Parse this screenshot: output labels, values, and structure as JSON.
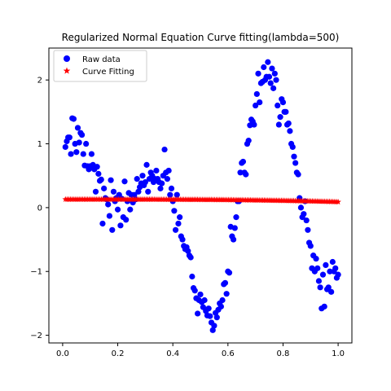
{
  "chart_data": {
    "type": "scatter",
    "title": "Regularized Normal Equation Curve fitting(lambda=500)",
    "xlabel": "",
    "ylabel": "",
    "xlim": [
      -0.05,
      1.05
    ],
    "ylim": [
      -2.12,
      2.5
    ],
    "xticks": [
      0.0,
      0.2,
      0.4,
      0.6,
      0.8,
      1.0
    ],
    "xtick_labels": [
      "0.0",
      "0.2",
      "0.4",
      "0.6",
      "0.8",
      "1.0"
    ],
    "yticks": [
      -2,
      -1,
      0,
      1,
      2
    ],
    "ytick_labels": [
      "−2",
      "−1",
      "0",
      "1",
      "2"
    ],
    "legend": {
      "position": "top-left"
    },
    "series": [
      {
        "name": "Raw data",
        "marker": "circle",
        "color": "#0000ff",
        "points": [
          [
            0.01,
            0.95
          ],
          [
            0.015,
            1.04
          ],
          [
            0.02,
            1.1
          ],
          [
            0.025,
            1.1
          ],
          [
            0.03,
            0.84
          ],
          [
            0.035,
            1.4
          ],
          [
            0.04,
            1.39
          ],
          [
            0.045,
            1.0
          ],
          [
            0.05,
            0.87
          ],
          [
            0.055,
            1.25
          ],
          [
            0.06,
            1.02
          ],
          [
            0.065,
            1.17
          ],
          [
            0.07,
            1.14
          ],
          [
            0.075,
            0.84
          ],
          [
            0.08,
            0.66
          ],
          [
            0.085,
            1.0
          ],
          [
            0.09,
            0.65
          ],
          [
            0.095,
            0.6
          ],
          [
            0.1,
            0.65
          ],
          [
            0.105,
            0.84
          ],
          [
            0.11,
            0.67
          ],
          [
            0.115,
            0.6
          ],
          [
            0.12,
            0.25
          ],
          [
            0.125,
            0.64
          ],
          [
            0.13,
            0.53
          ],
          [
            0.135,
            0.42
          ],
          [
            0.14,
            0.44
          ],
          [
            0.145,
            -0.25
          ],
          [
            0.15,
            0.3
          ],
          [
            0.155,
            0.15
          ],
          [
            0.16,
            0.13
          ],
          [
            0.165,
            0.05
          ],
          [
            0.17,
            -0.13
          ],
          [
            0.175,
            0.43
          ],
          [
            0.18,
            -0.35
          ],
          [
            0.185,
            0.25
          ],
          [
            0.19,
            0.1
          ],
          [
            0.195,
            0.15
          ],
          [
            0.2,
            -0.03
          ],
          [
            0.205,
            0.2
          ],
          [
            0.21,
            -0.28
          ],
          [
            0.215,
            0.14
          ],
          [
            0.22,
            -0.15
          ],
          [
            0.225,
            0.41
          ],
          [
            0.23,
            -0.19
          ],
          [
            0.235,
            0.1
          ],
          [
            0.24,
            0.23
          ],
          [
            0.245,
            -0.03
          ],
          [
            0.25,
            0.2
          ],
          [
            0.255,
            0.08
          ],
          [
            0.26,
            0.2
          ],
          [
            0.265,
            0.13
          ],
          [
            0.27,
            0.45
          ],
          [
            0.275,
            0.25
          ],
          [
            0.28,
            0.32
          ],
          [
            0.285,
            0.38
          ],
          [
            0.29,
            0.5
          ],
          [
            0.295,
            0.35
          ],
          [
            0.3,
            0.4
          ],
          [
            0.305,
            0.67
          ],
          [
            0.31,
            0.25
          ],
          [
            0.315,
            0.45
          ],
          [
            0.32,
            0.55
          ],
          [
            0.325,
            0.5
          ],
          [
            0.33,
            0.4
          ],
          [
            0.335,
            0.45
          ],
          [
            0.34,
            0.58
          ],
          [
            0.345,
            0.45
          ],
          [
            0.35,
            0.4
          ],
          [
            0.355,
            0.3
          ],
          [
            0.36,
            0.38
          ],
          [
            0.365,
            0.5
          ],
          [
            0.37,
            0.91
          ],
          [
            0.375,
            0.55
          ],
          [
            0.38,
            0.45
          ],
          [
            0.385,
            0.58
          ],
          [
            0.39,
            0.2
          ],
          [
            0.395,
            0.3
          ],
          [
            0.4,
            0.1
          ],
          [
            0.405,
            -0.05
          ],
          [
            0.41,
            -0.35
          ],
          [
            0.415,
            0.2
          ],
          [
            0.42,
            -0.25
          ],
          [
            0.425,
            -0.15
          ],
          [
            0.43,
            -0.45
          ],
          [
            0.435,
            -0.5
          ],
          [
            0.44,
            -0.6
          ],
          [
            0.445,
            -0.65
          ],
          [
            0.45,
            -0.62
          ],
          [
            0.455,
            -0.68
          ],
          [
            0.46,
            -0.75
          ],
          [
            0.465,
            -0.78
          ],
          [
            0.47,
            -1.08
          ],
          [
            0.475,
            -1.26
          ],
          [
            0.48,
            -1.3
          ],
          [
            0.485,
            -1.42
          ],
          [
            0.49,
            -1.66
          ],
          [
            0.495,
            -1.45
          ],
          [
            0.5,
            -1.36
          ],
          [
            0.505,
            -1.48
          ],
          [
            0.51,
            -1.56
          ],
          [
            0.515,
            -1.45
          ],
          [
            0.52,
            -1.62
          ],
          [
            0.525,
            -1.69
          ],
          [
            0.53,
            -1.58
          ],
          [
            0.535,
            -1.7
          ],
          [
            0.54,
            -1.8
          ],
          [
            0.545,
            -1.92
          ],
          [
            0.55,
            -1.85
          ],
          [
            0.555,
            -1.65
          ],
          [
            0.56,
            -1.72
          ],
          [
            0.565,
            -1.6
          ],
          [
            0.57,
            -1.5
          ],
          [
            0.575,
            -1.55
          ],
          [
            0.58,
            -1.45
          ],
          [
            0.585,
            -1.2
          ],
          [
            0.59,
            -1.18
          ],
          [
            0.595,
            -1.35
          ],
          [
            0.6,
            -1.0
          ],
          [
            0.605,
            -1.02
          ],
          [
            0.61,
            -0.3
          ],
          [
            0.615,
            -0.45
          ],
          [
            0.62,
            -0.5
          ],
          [
            0.625,
            -0.32
          ],
          [
            0.63,
            -0.15
          ],
          [
            0.635,
            0.1
          ],
          [
            0.64,
            0.1
          ],
          [
            0.645,
            0.55
          ],
          [
            0.65,
            0.7
          ],
          [
            0.655,
            0.72
          ],
          [
            0.66,
            0.55
          ],
          [
            0.665,
            0.52
          ],
          [
            0.67,
            1.0
          ],
          [
            0.675,
            1.05
          ],
          [
            0.68,
            1.29
          ],
          [
            0.685,
            1.38
          ],
          [
            0.69,
            1.35
          ],
          [
            0.695,
            1.3
          ],
          [
            0.7,
            1.6
          ],
          [
            0.705,
            1.78
          ],
          [
            0.71,
            2.1
          ],
          [
            0.715,
            1.65
          ],
          [
            0.72,
            1.95
          ],
          [
            0.725,
            1.97
          ],
          [
            0.73,
            2.2
          ],
          [
            0.735,
            2.0
          ],
          [
            0.74,
            2.05
          ],
          [
            0.745,
            2.28
          ],
          [
            0.75,
            2.05
          ],
          [
            0.755,
            1.95
          ],
          [
            0.76,
            2.18
          ],
          [
            0.765,
            1.87
          ],
          [
            0.77,
            2.1
          ],
          [
            0.775,
            2.0
          ],
          [
            0.78,
            1.6
          ],
          [
            0.785,
            1.3
          ],
          [
            0.79,
            1.42
          ],
          [
            0.795,
            1.7
          ],
          [
            0.8,
            1.65
          ],
          [
            0.805,
            1.5
          ],
          [
            0.81,
            1.5
          ],
          [
            0.815,
            1.3
          ],
          [
            0.82,
            1.32
          ],
          [
            0.825,
            1.2
          ],
          [
            0.83,
            1.0
          ],
          [
            0.835,
            0.95
          ],
          [
            0.84,
            0.8
          ],
          [
            0.845,
            0.7
          ],
          [
            0.85,
            0.55
          ],
          [
            0.855,
            0.52
          ],
          [
            0.86,
            0.15
          ],
          [
            0.865,
            0.0
          ],
          [
            0.87,
            -0.15
          ],
          [
            0.875,
            -0.1
          ],
          [
            0.88,
            0.1
          ],
          [
            0.885,
            -0.2
          ],
          [
            0.89,
            -0.35
          ],
          [
            0.895,
            -0.55
          ],
          [
            0.9,
            -0.6
          ],
          [
            0.905,
            -0.95
          ],
          [
            0.91,
            -0.75
          ],
          [
            0.915,
            -1.0
          ],
          [
            0.92,
            -0.8
          ],
          [
            0.925,
            -0.95
          ],
          [
            0.93,
            -1.15
          ],
          [
            0.935,
            -1.25
          ],
          [
            0.94,
            -1.58
          ],
          [
            0.945,
            -1.05
          ],
          [
            0.95,
            -1.55
          ],
          [
            0.955,
            -0.9
          ],
          [
            0.96,
            -1.28
          ],
          [
            0.965,
            -1.25
          ],
          [
            0.97,
            -1.0
          ],
          [
            0.975,
            -1.32
          ],
          [
            0.98,
            -0.85
          ],
          [
            0.985,
            -1.0
          ],
          [
            0.99,
            -0.95
          ],
          [
            0.995,
            -1.1
          ],
          [
            1.0,
            -1.05
          ]
        ]
      },
      {
        "name": "Curve Fitting",
        "marker": "star",
        "color": "#ff0000",
        "x_start": 0.01,
        "x_end": 1.0,
        "y_start": 0.13,
        "y_end": 0.09,
        "count": 160
      }
    ]
  }
}
